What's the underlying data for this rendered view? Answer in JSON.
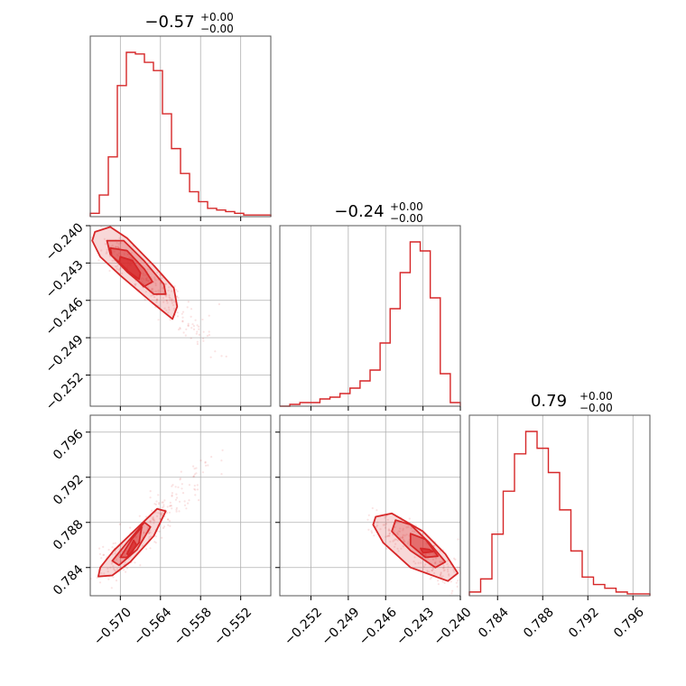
{
  "chart_data": {
    "type": "corner",
    "color": "#d62728",
    "parameters": [
      {
        "title": {
          "median": "−0.57",
          "plus": "+0.00",
          "minus": "−0.00"
        },
        "range": [
          -0.5745,
          -0.5475
        ],
        "ticks": [
          {
            "value": -0.57,
            "label": "−0.570"
          },
          {
            "value": -0.564,
            "label": "−0.564"
          },
          {
            "value": -0.558,
            "label": "−0.558"
          },
          {
            "value": -0.552,
            "label": "−0.552"
          }
        ],
        "histogram": [
          2,
          13,
          36,
          79,
          99,
          98,
          93,
          88,
          62,
          41,
          26,
          15,
          9,
          5,
          4,
          3,
          2,
          1,
          1,
          1
        ]
      },
      {
        "title": {
          "median": "−0.24",
          "plus": "+0.00",
          "minus": "−0.00"
        },
        "range": [
          -0.2545,
          -0.24
        ],
        "ticks": [
          {
            "value": -0.252,
            "label": "−0.252"
          },
          {
            "value": -0.249,
            "label": "−0.249"
          },
          {
            "value": -0.246,
            "label": "−0.246"
          },
          {
            "value": -0.243,
            "label": "−0.243"
          },
          {
            "value": -0.24,
            "label": "−0.240"
          }
        ],
        "histogram": [
          0,
          1,
          2,
          2,
          4,
          5,
          7,
          10,
          14,
          20,
          35,
          54,
          74,
          91,
          86,
          60,
          18,
          2
        ]
      },
      {
        "title": {
          "median": "0.79",
          "plus": "+0.00",
          "minus": "−0.00"
        },
        "range": [
          0.7815,
          0.7975
        ],
        "ticks": [
          {
            "value": 0.784,
            "label": "0.784"
          },
          {
            "value": 0.788,
            "label": "0.788"
          },
          {
            "value": 0.792,
            "label": "0.792"
          },
          {
            "value": 0.796,
            "label": "0.796"
          }
        ],
        "histogram": [
          2,
          9,
          33,
          56,
          76,
          88,
          79,
          66,
          46,
          24,
          10,
          6,
          4,
          2,
          1,
          1
        ]
      }
    ],
    "pairs": [
      {
        "x": 0,
        "y": 1,
        "contours": [
          [
            [
              -0.5738,
              -0.2405
            ],
            [
              -0.5715,
              -0.2401
            ],
            [
              -0.569,
              -0.241
            ],
            [
              -0.565,
              -0.2432
            ],
            [
              -0.562,
              -0.245
            ],
            [
              -0.5615,
              -0.2465
            ],
            [
              -0.5622,
              -0.2475
            ],
            [
              -0.5652,
              -0.2462
            ],
            [
              -0.57,
              -0.244
            ],
            [
              -0.573,
              -0.2425
            ],
            [
              -0.5742,
              -0.2412
            ]
          ],
          [
            [
              -0.572,
              -0.2412
            ],
            [
              -0.5695,
              -0.2412
            ],
            [
              -0.5665,
              -0.2428
            ],
            [
              -0.5635,
              -0.2447
            ],
            [
              -0.5632,
              -0.2455
            ],
            [
              -0.565,
              -0.2455
            ],
            [
              -0.569,
              -0.2437
            ],
            [
              -0.5715,
              -0.2423
            ]
          ],
          [
            [
              -0.5715,
              -0.2418
            ],
            [
              -0.569,
              -0.242
            ],
            [
              -0.5664,
              -0.2435
            ],
            [
              -0.5652,
              -0.2445
            ],
            [
              -0.5665,
              -0.2449
            ],
            [
              -0.5695,
              -0.2433
            ],
            [
              -0.5713,
              -0.2424
            ]
          ],
          [
            [
              -0.57,
              -0.2425
            ],
            [
              -0.5682,
              -0.2428
            ],
            [
              -0.567,
              -0.2438
            ],
            [
              -0.5672,
              -0.2443
            ],
            [
              -0.569,
              -0.2436
            ],
            [
              -0.5702,
              -0.243
            ]
          ]
        ]
      },
      {
        "x": 0,
        "y": 2,
        "contours": [
          [
            [
              -0.573,
              0.784
            ],
            [
              -0.571,
              0.7855
            ],
            [
              -0.568,
              0.7872
            ],
            [
              -0.5645,
              0.7892
            ],
            [
              -0.5632,
              0.789
            ],
            [
              -0.565,
              0.7868
            ],
            [
              -0.5685,
              0.7845
            ],
            [
              -0.5712,
              0.7833
            ],
            [
              -0.5733,
              0.7832
            ]
          ],
          [
            [
              -0.5712,
              0.7846
            ],
            [
              -0.569,
              0.7862
            ],
            [
              -0.5664,
              0.788
            ],
            [
              -0.5655,
              0.7876
            ],
            [
              -0.5675,
              0.7856
            ],
            [
              -0.5702,
              0.7842
            ]
          ],
          [
            [
              -0.57,
              0.7849
            ],
            [
              -0.5682,
              0.7866
            ],
            [
              -0.5668,
              0.7876
            ],
            [
              -0.5672,
              0.7862
            ],
            [
              -0.569,
              0.7849
            ]
          ],
          [
            [
              -0.569,
              0.7852
            ],
            [
              -0.568,
              0.7864
            ],
            [
              -0.5676,
              0.786
            ],
            [
              -0.5685,
              0.7851
            ]
          ]
        ]
      },
      {
        "x": 1,
        "y": 2,
        "contours": [
          [
            [
              -0.2468,
              0.7885
            ],
            [
              -0.2455,
              0.7888
            ],
            [
              -0.243,
              0.7872
            ],
            [
              -0.2412,
              0.7852
            ],
            [
              -0.2402,
              0.7835
            ],
            [
              -0.241,
              0.7828
            ],
            [
              -0.244,
              0.784
            ],
            [
              -0.2462,
              0.7862
            ],
            [
              -0.247,
              0.7878
            ]
          ],
          [
            [
              -0.2452,
              0.7882
            ],
            [
              -0.244,
              0.7878
            ],
            [
              -0.2425,
              0.7862
            ],
            [
              -0.2412,
              0.7845
            ],
            [
              -0.242,
              0.784
            ],
            [
              -0.244,
              0.7855
            ],
            [
              -0.2455,
              0.7872
            ]
          ],
          [
            [
              -0.244,
              0.787
            ],
            [
              -0.2428,
              0.7865
            ],
            [
              -0.2418,
              0.785
            ],
            [
              -0.2428,
              0.7849
            ],
            [
              -0.244,
              0.786
            ]
          ],
          [
            [
              -0.2432,
              0.7857
            ],
            [
              -0.2425,
              0.7856
            ],
            [
              -0.2422,
              0.7854
            ],
            [
              -0.243,
              0.7853
            ]
          ]
        ]
      }
    ]
  }
}
